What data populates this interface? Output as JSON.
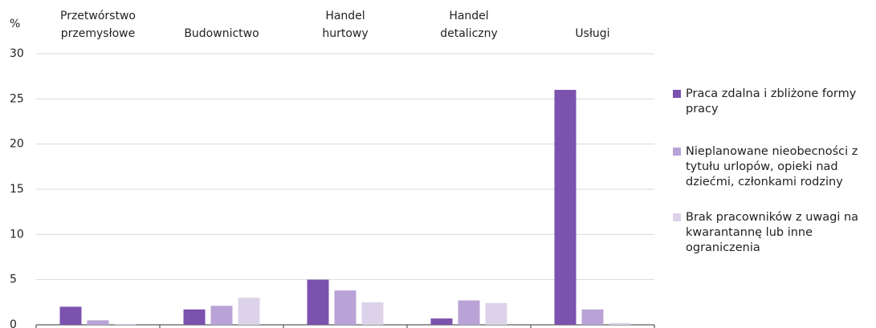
{
  "chart_data": {
    "type": "bar",
    "y_label": "%",
    "categories": [
      "Przetwórstwo przemysłowe",
      "Budownictwo",
      "Handel hurtowy",
      "Handel detaliczny",
      "Usługi"
    ],
    "series": [
      {
        "name": "Praca zdalna i zbliżone formy pracy",
        "color": "#7b52ae",
        "values": [
          2.0,
          1.7,
          5.0,
          0.7,
          26.0
        ]
      },
      {
        "name": "Nieplanowane nieobecności z tytułu urlopów, opieki nad dziećmi, członkami rodziny",
        "color": "#b9a3d6",
        "values": [
          0.5,
          2.1,
          3.8,
          2.7,
          1.7
        ]
      },
      {
        "name": "Brak pracowników z uwagi na kwarantannę lub inne ograniczenia",
        "color": "#dcd3ea",
        "values": [
          0.1,
          3.0,
          2.5,
          2.4,
          0.2
        ]
      }
    ],
    "ylim": [
      0,
      30
    ],
    "yticks": [
      0,
      5,
      10,
      15,
      20,
      25,
      30
    ],
    "grid": true,
    "legend": "right"
  }
}
